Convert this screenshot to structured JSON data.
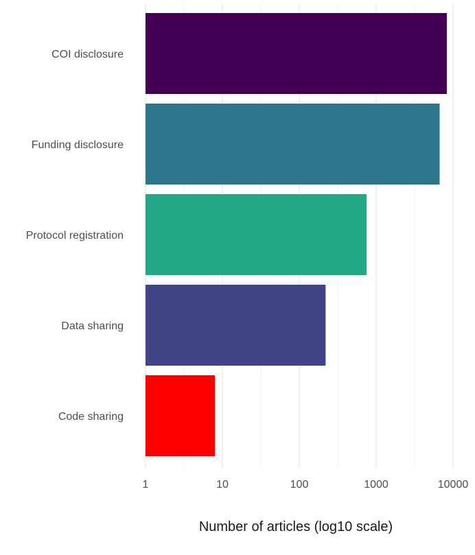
{
  "chart_data": {
    "type": "bar",
    "orientation": "horizontal",
    "xscale": "log10",
    "xlim": [
      1,
      10000
    ],
    "xlabel": "Number of articles (log10 scale)",
    "ylabel": "",
    "title": "",
    "grid": true,
    "categories": [
      "COI disclosure",
      "Funding disclosure",
      "Protocol registration",
      "Data sharing",
      "Code sharing"
    ],
    "values": [
      8300,
      6700,
      750,
      220,
      8
    ],
    "colors": [
      "#440154",
      "#2c768c",
      "#22a884",
      "#414487",
      "#ff0000"
    ],
    "xticks": [
      1,
      10,
      100,
      1000,
      10000
    ],
    "xtick_labels": [
      "1",
      "10",
      "100",
      "1000",
      "10000"
    ]
  }
}
